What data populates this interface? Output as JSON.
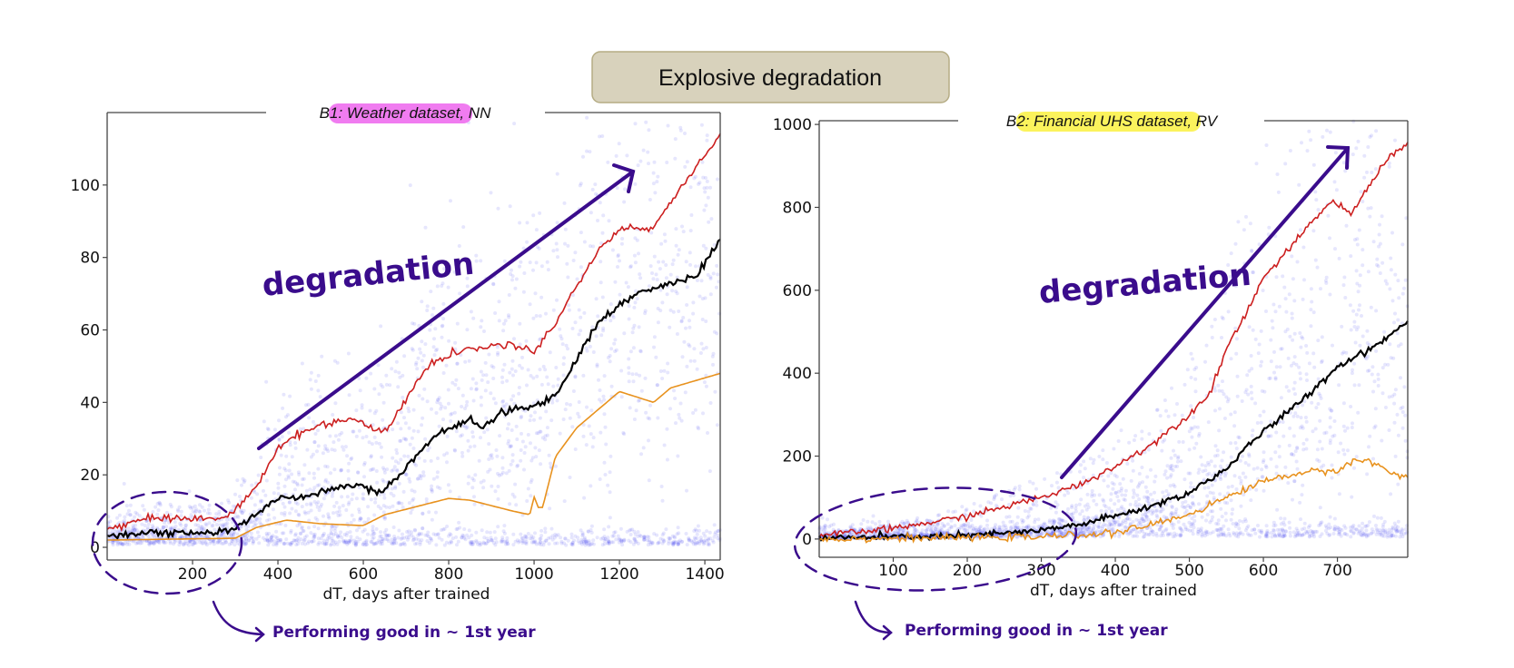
{
  "banner": {
    "title": "Explosive degradation",
    "fill": "#d8d2bc",
    "border": "#b5ac84"
  },
  "annotation_color": "#3a0c8c",
  "chart_data": [
    {
      "type": "scatter",
      "title_prefix": "B1: ",
      "title_highlight": "Weather dataset",
      "title_suffix": ", NN",
      "highlight_color": "#f07cf0",
      "xlabel": "dT, days after trained",
      "ylabel": "",
      "xlim": [
        0,
        1436
      ],
      "ylim": [
        -3.5,
        120
      ],
      "xticks": [
        200,
        400,
        600,
        800,
        1000,
        1200,
        1400
      ],
      "yticks": [
        0,
        20,
        40,
        60,
        80,
        100
      ],
      "grid": false,
      "scatter_color": "#3a3af0",
      "series": [
        {
          "color": "#cc1f1f",
          "x": [
            0,
            50,
            100,
            150,
            200,
            270,
            300,
            350,
            400,
            430,
            500,
            570,
            640,
            660,
            720,
            760,
            850,
            950,
            1000,
            1050,
            1100,
            1150,
            1200,
            1280,
            1300,
            1350,
            1400,
            1436
          ],
          "y": [
            5,
            6.5,
            8.5,
            8,
            8,
            8,
            10,
            17,
            27,
            30,
            34,
            35.5,
            32,
            33,
            45,
            51,
            55,
            56,
            54,
            62,
            72,
            82,
            88,
            88,
            92,
            100,
            108,
            114
          ]
        },
        {
          "color": "#000000",
          "x": [
            0,
            100,
            250,
            300,
            350,
            400,
            450,
            500,
            580,
            640,
            700,
            760,
            800,
            850,
            880,
            920,
            1000,
            1050,
            1100,
            1150,
            1200,
            1260,
            1330,
            1380,
            1436
          ],
          "y": [
            3.5,
            4,
            4,
            5,
            9,
            14,
            13.5,
            15.5,
            17.5,
            15,
            22,
            30,
            33,
            35,
            33,
            37,
            39,
            42,
            52,
            62,
            67,
            71,
            73,
            75,
            85
          ]
        },
        {
          "color": "#e8921e",
          "x": [
            0,
            300,
            350,
            420,
            500,
            600,
            650,
            750,
            800,
            850,
            950,
            990,
            1000,
            1010,
            1020,
            1050,
            1100,
            1150,
            1200,
            1280,
            1320,
            1436
          ],
          "y": [
            2,
            2.5,
            5.5,
            7.5,
            6.5,
            6,
            9,
            12,
            13.5,
            13,
            10,
            9,
            14,
            11,
            11,
            25,
            33,
            38,
            43,
            40,
            44,
            48
          ]
        }
      ],
      "annotations": {
        "arrow_text": "degradation",
        "circle_text": "Performing good in ~ 1st year"
      }
    },
    {
      "type": "scatter",
      "title_prefix": "B2: ",
      "title_highlight": "Financial UHS dataset",
      "title_suffix": ", RV",
      "highlight_color": "#fbf35c",
      "xlabel": "dT, days after trained",
      "ylabel": "",
      "xlim": [
        0,
        795
      ],
      "ylim": [
        -44,
        1009
      ],
      "xticks": [
        100,
        200,
        300,
        400,
        500,
        600,
        700
      ],
      "yticks": [
        0,
        200,
        400,
        600,
        800,
        1000
      ],
      "grid": false,
      "scatter_color": "#3a3af0",
      "series": [
        {
          "color": "#cc1f1f",
          "x": [
            0,
            100,
            200,
            300,
            350,
            400,
            450,
            500,
            530,
            550,
            575,
            600,
            650,
            690,
            720,
            750,
            770,
            795
          ],
          "y": [
            8,
            25,
            55,
            100,
            130,
            175,
            230,
            300,
            360,
            460,
            540,
            630,
            730,
            815,
            785,
            875,
            922,
            955
          ]
        },
        {
          "color": "#000000",
          "x": [
            0,
            200,
            300,
            350,
            400,
            450,
            500,
            550,
            600,
            650,
            700,
            750,
            795
          ],
          "y": [
            2,
            8,
            20,
            35,
            55,
            80,
            112,
            170,
            260,
            330,
            416,
            465,
            525
          ]
        },
        {
          "color": "#e8921e",
          "x": [
            0,
            300,
            400,
            450,
            500,
            550,
            600,
            650,
            700,
            720,
            750,
            770,
            795
          ],
          "y": [
            0,
            5,
            15,
            35,
            60,
            100,
            140,
            160,
            165,
            190,
            185,
            160,
            150
          ]
        }
      ],
      "annotations": {
        "arrow_text": "degradation",
        "circle_text": "Performing good in ~ 1st year"
      }
    }
  ]
}
